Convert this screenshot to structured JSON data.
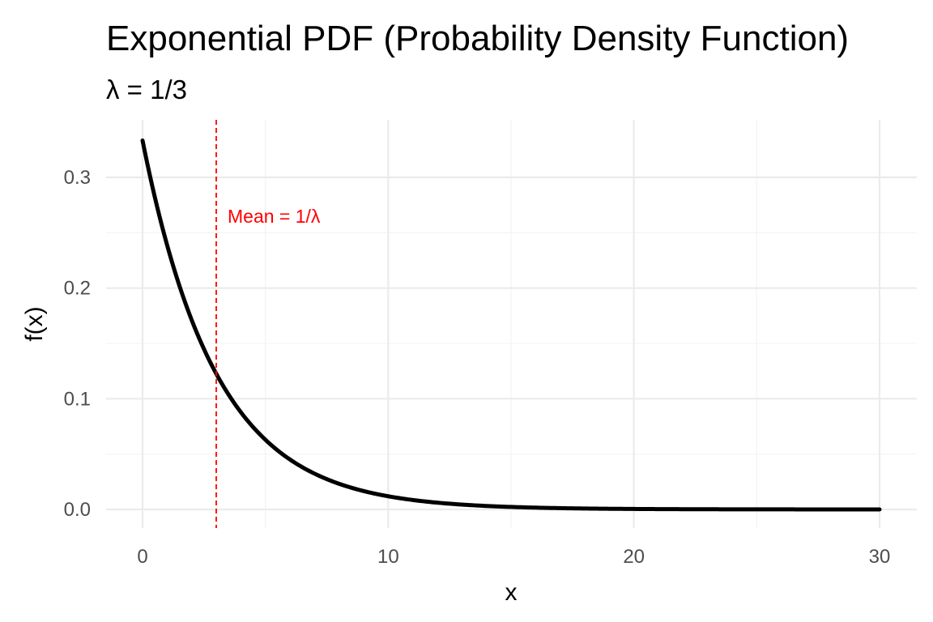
{
  "chart_data": {
    "type": "line",
    "title": "Exponential PDF (Probability Density Function)",
    "subtitle": "λ = 1/3",
    "xlabel": "x",
    "ylabel": "f(x)",
    "xlim": [
      0,
      30
    ],
    "ylim": [
      0,
      0.3333
    ],
    "x_ticks": [
      0,
      10,
      20,
      30
    ],
    "y_ticks": [
      0.0,
      0.1,
      0.2,
      0.3
    ],
    "x_tick_labels": [
      "0",
      "10",
      "20",
      "30"
    ],
    "y_tick_labels": [
      "0.0",
      "0.1",
      "0.2",
      "0.3"
    ],
    "grid": true,
    "series": [
      {
        "x": [
          0,
          1,
          2,
          3,
          4,
          5,
          6,
          7,
          8,
          9,
          10,
          12,
          14,
          16,
          18,
          20,
          22,
          24,
          26,
          28,
          30
        ],
        "values": [
          0.3333,
          0.2388,
          0.1711,
          0.1226,
          0.0879,
          0.063,
          0.0451,
          0.0323,
          0.0232,
          0.0166,
          0.0119,
          0.0061,
          0.0031,
          0.0016,
          0.0008,
          0.0004,
          0.0002,
          0.0001,
          0.0001,
          0.0,
          0.0
        ],
        "color": "#000000"
      }
    ],
    "reference_line": {
      "orientation": "vertical",
      "x": 3,
      "style": "dashed",
      "color": "#ff0000",
      "label": "Mean = 1/λ"
    }
  }
}
